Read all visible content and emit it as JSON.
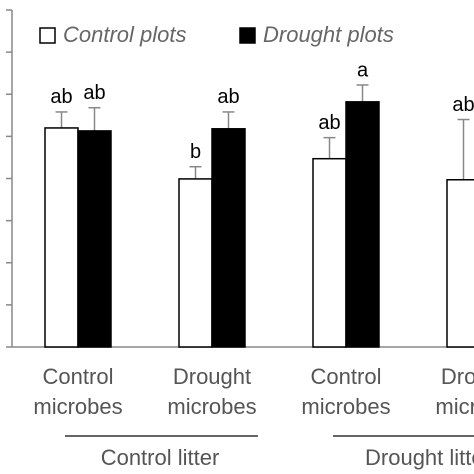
{
  "chart_data": {
    "type": "bar",
    "categories": [
      [
        "Control",
        "microbes"
      ],
      [
        "Drought",
        "microbes"
      ],
      [
        "Control",
        "microbes"
      ],
      [
        "Drought",
        "microbes"
      ]
    ],
    "groups": [
      {
        "label": "Control litter",
        "span": [
          0,
          1
        ]
      },
      {
        "label": "Drought litter",
        "span": [
          2,
          3
        ]
      }
    ],
    "series": [
      {
        "name": "Control plots",
        "color": "#ffffff",
        "values": [
          5.2,
          3.99,
          4.47,
          3.97
        ],
        "errors": [
          0.38,
          0.29,
          0.5,
          1.43
        ],
        "annotations": [
          "ab",
          "b",
          "ab",
          "ab"
        ]
      },
      {
        "name": "Drought plots",
        "color": "#000000",
        "values": [
          5.13,
          5.18,
          5.82,
          null
        ],
        "errors": [
          0.55,
          0.4,
          0.4,
          null
        ],
        "annotations": [
          "ab",
          "ab",
          "a",
          null
        ]
      }
    ],
    "ylim": [
      0,
      8
    ],
    "yticks": [
      0,
      1,
      2,
      3,
      4,
      5,
      6,
      7,
      8
    ]
  }
}
